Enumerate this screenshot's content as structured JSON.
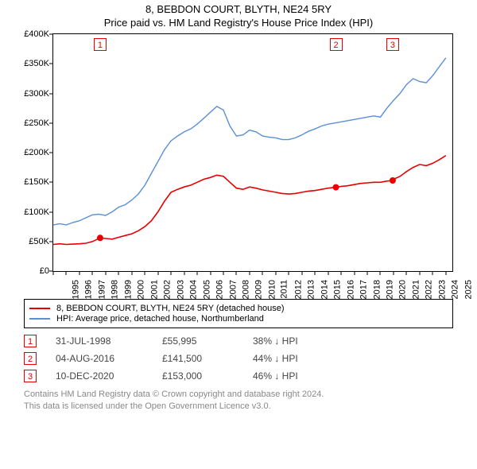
{
  "title_line1": "8, BEBDON COURT, BLYTH, NE24 5RY",
  "title_line2": "Price paid vs. HM Land Registry's House Price Index (HPI)",
  "chart": {
    "type": "line",
    "x_start": 1995,
    "x_end": 2025.5,
    "ylim": [
      0,
      400000
    ],
    "ytick_step": 50000,
    "yticks": [
      "£0",
      "£50K",
      "£100K",
      "£150K",
      "£200K",
      "£250K",
      "£300K",
      "£350K",
      "£400K"
    ],
    "xticks": [
      1995,
      1996,
      1997,
      1998,
      1999,
      2000,
      2001,
      2002,
      2003,
      2004,
      2005,
      2006,
      2007,
      2008,
      2009,
      2010,
      2011,
      2012,
      2013,
      2014,
      2015,
      2016,
      2017,
      2018,
      2019,
      2020,
      2021,
      2022,
      2023,
      2024,
      2025
    ],
    "background_color": "#ffffff",
    "border_color": "#000000",
    "tick_fontsize": 11,
    "series": [
      {
        "name": "property",
        "color": "#e60000",
        "width": 1.6,
        "data": [
          [
            1995,
            45000
          ],
          [
            1995.5,
            46000
          ],
          [
            1996,
            45000
          ],
          [
            1996.5,
            45500
          ],
          [
            1997,
            46000
          ],
          [
            1997.5,
            47000
          ],
          [
            1998,
            50000
          ],
          [
            1998.58,
            55995
          ],
          [
            1999,
            55000
          ],
          [
            1999.5,
            54000
          ],
          [
            2000,
            57000
          ],
          [
            2000.5,
            60000
          ],
          [
            2001,
            63000
          ],
          [
            2001.5,
            68000
          ],
          [
            2002,
            75000
          ],
          [
            2002.5,
            85000
          ],
          [
            2003,
            100000
          ],
          [
            2003.5,
            118000
          ],
          [
            2004,
            133000
          ],
          [
            2004.5,
            138000
          ],
          [
            2005,
            142000
          ],
          [
            2005.5,
            145000
          ],
          [
            2006,
            150000
          ],
          [
            2006.5,
            155000
          ],
          [
            2007,
            158000
          ],
          [
            2007.5,
            162000
          ],
          [
            2008,
            160000
          ],
          [
            2008.5,
            150000
          ],
          [
            2009,
            140000
          ],
          [
            2009.5,
            138000
          ],
          [
            2010,
            142000
          ],
          [
            2010.5,
            140000
          ],
          [
            2011,
            137000
          ],
          [
            2011.5,
            135000
          ],
          [
            2012,
            133000
          ],
          [
            2012.5,
            131000
          ],
          [
            2013,
            130000
          ],
          [
            2013.5,
            131000
          ],
          [
            2014,
            133000
          ],
          [
            2014.5,
            135000
          ],
          [
            2015,
            136000
          ],
          [
            2015.5,
            138000
          ],
          [
            2016,
            140000
          ],
          [
            2016.6,
            141500
          ],
          [
            2017,
            143000
          ],
          [
            2017.5,
            144000
          ],
          [
            2018,
            146000
          ],
          [
            2018.5,
            148000
          ],
          [
            2019,
            149000
          ],
          [
            2019.5,
            150000
          ],
          [
            2020,
            150000
          ],
          [
            2020.5,
            152000
          ],
          [
            2020.94,
            153000
          ],
          [
            2021,
            155000
          ],
          [
            2021.5,
            160000
          ],
          [
            2022,
            168000
          ],
          [
            2022.5,
            175000
          ],
          [
            2023,
            180000
          ],
          [
            2023.5,
            178000
          ],
          [
            2024,
            182000
          ],
          [
            2024.5,
            188000
          ],
          [
            2025,
            195000
          ]
        ]
      },
      {
        "name": "hpi",
        "color": "#5b8fd6",
        "width": 1.4,
        "data": [
          [
            1995,
            78000
          ],
          [
            1995.5,
            80000
          ],
          [
            1996,
            78000
          ],
          [
            1996.5,
            82000
          ],
          [
            1997,
            85000
          ],
          [
            1997.5,
            90000
          ],
          [
            1998,
            95000
          ],
          [
            1998.5,
            96000
          ],
          [
            1999,
            94000
          ],
          [
            1999.5,
            100000
          ],
          [
            2000,
            108000
          ],
          [
            2000.5,
            112000
          ],
          [
            2001,
            120000
          ],
          [
            2001.5,
            130000
          ],
          [
            2002,
            145000
          ],
          [
            2002.5,
            165000
          ],
          [
            2003,
            185000
          ],
          [
            2003.5,
            205000
          ],
          [
            2004,
            220000
          ],
          [
            2004.5,
            228000
          ],
          [
            2005,
            235000
          ],
          [
            2005.5,
            240000
          ],
          [
            2006,
            248000
          ],
          [
            2006.5,
            258000
          ],
          [
            2007,
            268000
          ],
          [
            2007.5,
            278000
          ],
          [
            2008,
            272000
          ],
          [
            2008.5,
            245000
          ],
          [
            2009,
            228000
          ],
          [
            2009.5,
            230000
          ],
          [
            2010,
            238000
          ],
          [
            2010.5,
            235000
          ],
          [
            2011,
            228000
          ],
          [
            2011.5,
            226000
          ],
          [
            2012,
            225000
          ],
          [
            2012.5,
            222000
          ],
          [
            2013,
            222000
          ],
          [
            2013.5,
            225000
          ],
          [
            2014,
            230000
          ],
          [
            2014.5,
            236000
          ],
          [
            2015,
            240000
          ],
          [
            2015.5,
            245000
          ],
          [
            2016,
            248000
          ],
          [
            2016.5,
            250000
          ],
          [
            2017,
            252000
          ],
          [
            2017.5,
            254000
          ],
          [
            2018,
            256000
          ],
          [
            2018.5,
            258000
          ],
          [
            2019,
            260000
          ],
          [
            2019.5,
            262000
          ],
          [
            2020,
            260000
          ],
          [
            2020.5,
            275000
          ],
          [
            2021,
            288000
          ],
          [
            2021.5,
            300000
          ],
          [
            2022,
            315000
          ],
          [
            2022.5,
            325000
          ],
          [
            2023,
            320000
          ],
          [
            2023.5,
            318000
          ],
          [
            2024,
            330000
          ],
          [
            2024.5,
            345000
          ],
          [
            2025,
            360000
          ]
        ]
      }
    ],
    "markers": [
      {
        "n": "1",
        "year": 1998.58,
        "price": 55995
      },
      {
        "n": "2",
        "year": 2016.6,
        "price": 141500
      },
      {
        "n": "3",
        "year": 2020.94,
        "price": 153000
      }
    ]
  },
  "legend": {
    "items": [
      {
        "color": "#e60000",
        "label": "8, BEBDON COURT, BLYTH, NE24 5RY (detached house)"
      },
      {
        "color": "#5b8fd6",
        "label": "HPI: Average price, detached house, Northumberland"
      }
    ]
  },
  "sales": [
    {
      "n": "1",
      "date": "31-JUL-1998",
      "price": "£55,995",
      "vs": "38% ↓ HPI"
    },
    {
      "n": "2",
      "date": "04-AUG-2016",
      "price": "£141,500",
      "vs": "44% ↓ HPI"
    },
    {
      "n": "3",
      "date": "10-DEC-2020",
      "price": "£153,000",
      "vs": "46% ↓ HPI"
    }
  ],
  "footer_line1": "Contains HM Land Registry data © Crown copyright and database right 2024.",
  "footer_line2": "This data is licensed under the Open Government Licence v3.0."
}
